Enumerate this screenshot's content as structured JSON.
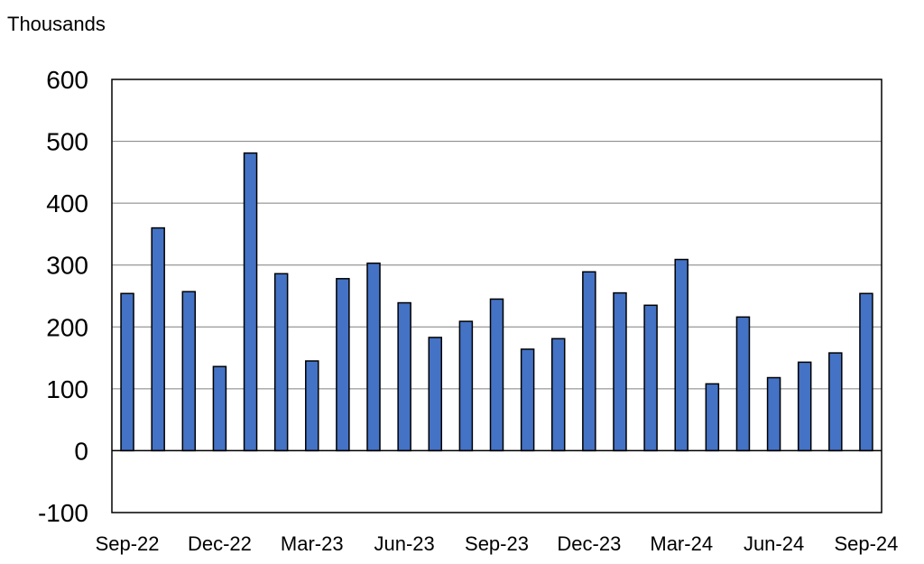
{
  "chart_data": {
    "type": "bar",
    "unit_label": "Thousands",
    "title": "",
    "xlabel": "",
    "ylabel": "",
    "ylim": [
      -100,
      600
    ],
    "yticks": [
      600,
      500,
      400,
      300,
      200,
      100,
      0,
      -100
    ],
    "xtick_labels": [
      "Sep-22",
      "Dec-22",
      "Mar-23",
      "Jun-23",
      "Sep-23",
      "Dec-23",
      "Mar-24",
      "Jun-24",
      "Sep-24"
    ],
    "categories": [
      "Sep-22",
      "Oct-22",
      "Nov-22",
      "Dec-22",
      "Jan-23",
      "Feb-23",
      "Mar-23",
      "Apr-23",
      "May-23",
      "Jun-23",
      "Jul-23",
      "Aug-23",
      "Sep-23",
      "Oct-23",
      "Nov-23",
      "Dec-23",
      "Jan-24",
      "Feb-24",
      "Mar-24",
      "Apr-24",
      "May-24",
      "Jun-24",
      "Jul-24",
      "Aug-24",
      "Sep-24"
    ],
    "values": [
      254,
      360,
      257,
      136,
      481,
      286,
      145,
      278,
      303,
      239,
      183,
      209,
      245,
      164,
      181,
      289,
      255,
      235,
      309,
      108,
      216,
      118,
      143,
      158,
      254
    ],
    "grid": true,
    "bar_color": "#4472c4",
    "bar_edge_color": "#000000"
  }
}
